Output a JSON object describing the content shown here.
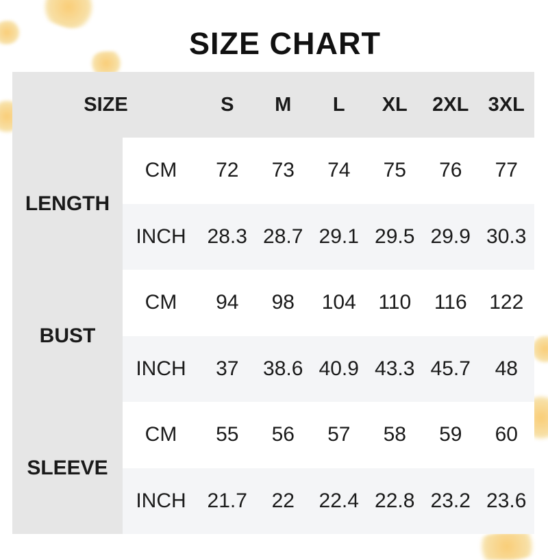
{
  "title": "SIZE CHART",
  "colors": {
    "header_bg": "#e6e6e6",
    "alt_row_bg": "#f4f5f7",
    "row_bg": "#ffffff",
    "text": "#1a1a1a",
    "leaf_accent": "#f7c45c"
  },
  "decoration": {
    "icons": [
      "maple-leaf-icon"
    ]
  },
  "table": {
    "corner_label": "SIZE",
    "sizes": [
      "S",
      "M",
      "L",
      "XL",
      "2XL",
      "3XL"
    ],
    "groups": [
      {
        "label": "LENGTH",
        "rows": [
          {
            "unit": "CM",
            "values": [
              "72",
              "73",
              "74",
              "75",
              "76",
              "77"
            ]
          },
          {
            "unit": "INCH",
            "values": [
              "28.3",
              "28.7",
              "29.1",
              "29.5",
              "29.9",
              "30.3"
            ]
          }
        ]
      },
      {
        "label": "BUST",
        "rows": [
          {
            "unit": "CM",
            "values": [
              "94",
              "98",
              "104",
              "110",
              "116",
              "122"
            ]
          },
          {
            "unit": "INCH",
            "values": [
              "37",
              "38.6",
              "40.9",
              "43.3",
              "45.7",
              "48"
            ]
          }
        ]
      },
      {
        "label": "SLEEVE",
        "rows": [
          {
            "unit": "CM",
            "values": [
              "55",
              "56",
              "57",
              "58",
              "59",
              "60"
            ]
          },
          {
            "unit": "INCH",
            "values": [
              "21.7",
              "22",
              "22.4",
              "22.8",
              "23.2",
              "23.6"
            ]
          }
        ]
      }
    ]
  }
}
